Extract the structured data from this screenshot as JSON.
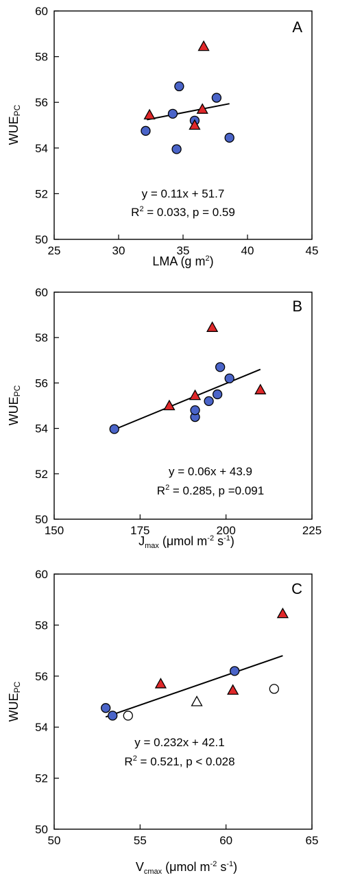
{
  "colors": {
    "circle_fill": "#4a64c8",
    "triangle_fill": "#e0282a",
    "open_fill": "#ffffff",
    "stroke": "#000000"
  },
  "chart_data": [
    {
      "type": "scatter",
      "panel": "A",
      "xlabel": "LMA (g m",
      "xlabel_sup": "2",
      "xlabel_tail": ")",
      "ylabel": "WUE",
      "ylabel_sub": "PC",
      "xlim": [
        25,
        45
      ],
      "ylim": [
        50,
        60
      ],
      "xticks": [
        25,
        30,
        35,
        40,
        45
      ],
      "yticks": [
        50,
        52,
        54,
        56,
        58,
        60
      ],
      "xtick_labels": [
        "25",
        "30",
        "35",
        "40",
        "45"
      ],
      "ytick_labels": [
        "50",
        "52",
        "54",
        "56",
        "58",
        "60"
      ],
      "fit": {
        "x": [
          32.2,
          38.6
        ],
        "y": [
          55.24,
          55.94
        ]
      },
      "equation": "y = 0.11x + 51.7",
      "r2_prefix": "R",
      "r2_sup": "2",
      "r2_rest": " = 0.033, p = 0.59",
      "series": [
        {
          "marker": "circle",
          "points": [
            [
              32.1,
              54.75
            ],
            [
              34.2,
              55.5
            ],
            [
              34.5,
              53.95
            ],
            [
              34.7,
              56.7
            ],
            [
              35.9,
              55.2
            ],
            [
              37.6,
              56.2
            ],
            [
              38.6,
              54.45
            ]
          ]
        },
        {
          "marker": "triangle",
          "points": [
            [
              32.4,
              55.45
            ],
            [
              35.9,
              55.0
            ],
            [
              36.5,
              55.7
            ],
            [
              36.6,
              58.45
            ]
          ]
        }
      ]
    },
    {
      "type": "scatter",
      "panel": "B",
      "xlabel": "J",
      "xlabel_sub": "max",
      "xlabel_tail": " (μmol m",
      "xlabel_sup": "-2",
      "xlabel_tail2": " s",
      "xlabel_sup2": "-1",
      "xlabel_end": ")",
      "ylabel": "WUE",
      "ylabel_sub": "PC",
      "xlim": [
        150,
        225
      ],
      "ylim": [
        50,
        60
      ],
      "xticks": [
        150,
        175,
        200,
        225
      ],
      "yticks": [
        50,
        52,
        54,
        56,
        58,
        60
      ],
      "xtick_labels": [
        "150",
        "175",
        "200",
        "225"
      ],
      "ytick_labels": [
        "50",
        "52",
        "54",
        "56",
        "58",
        "60"
      ],
      "fit": {
        "x": [
          167.5,
          210.0
        ],
        "y": [
          53.95,
          56.6
        ]
      },
      "equation": "y = 0.06x + 43.9",
      "r2_prefix": "R",
      "r2_sup": "2",
      "r2_rest": " = 0.285, p =0.091",
      "series": [
        {
          "marker": "circle",
          "points": [
            [
              167.5,
              53.97
            ],
            [
              191.0,
              54.5
            ],
            [
              191.0,
              54.8
            ],
            [
              195.0,
              55.2
            ],
            [
              197.5,
              55.5
            ],
            [
              198.3,
              56.7
            ],
            [
              201.0,
              56.2
            ]
          ]
        },
        {
          "marker": "triangle",
          "points": [
            [
              183.5,
              55.0
            ],
            [
              191.0,
              55.45
            ],
            [
              196.0,
              58.45
            ],
            [
              210.0,
              55.7
            ]
          ]
        }
      ]
    },
    {
      "type": "scatter",
      "panel": "C",
      "xlabel": "V",
      "xlabel_sub": "cmax",
      "xlabel_tail": " (μmol m",
      "xlabel_sup": "-2",
      "xlabel_tail2": " s",
      "xlabel_sup2": "-1",
      "xlabel_end": ")",
      "ylabel": "WUE",
      "ylabel_sub": "PC",
      "xlim": [
        50,
        65
      ],
      "ylim": [
        50,
        60
      ],
      "xticks": [
        50,
        55,
        60,
        65
      ],
      "yticks": [
        50,
        52,
        54,
        56,
        58,
        60
      ],
      "xtick_labels": [
        "50",
        "55",
        "60",
        "65"
      ],
      "ytick_labels": [
        "50",
        "52",
        "54",
        "56",
        "58",
        "60"
      ],
      "fit": {
        "x": [
          53.0,
          63.3
        ],
        "y": [
          54.4,
          56.8
        ]
      },
      "equation": "y = 0.232x + 42.1",
      "r2_prefix": "R",
      "r2_sup": "2",
      "r2_rest": " = 0.521, p < 0.028",
      "series": [
        {
          "marker": "circle",
          "points": [
            [
              53.0,
              54.75
            ],
            [
              53.4,
              54.45
            ],
            [
              60.5,
              56.2
            ]
          ]
        },
        {
          "marker": "open-circle",
          "points": [
            [
              54.3,
              54.45
            ],
            [
              62.8,
              55.5
            ]
          ]
        },
        {
          "marker": "triangle",
          "points": [
            [
              56.2,
              55.7
            ],
            [
              60.4,
              55.45
            ],
            [
              63.3,
              58.45
            ]
          ]
        },
        {
          "marker": "open-triangle",
          "points": [
            [
              58.3,
              55.0
            ]
          ]
        }
      ]
    }
  ]
}
